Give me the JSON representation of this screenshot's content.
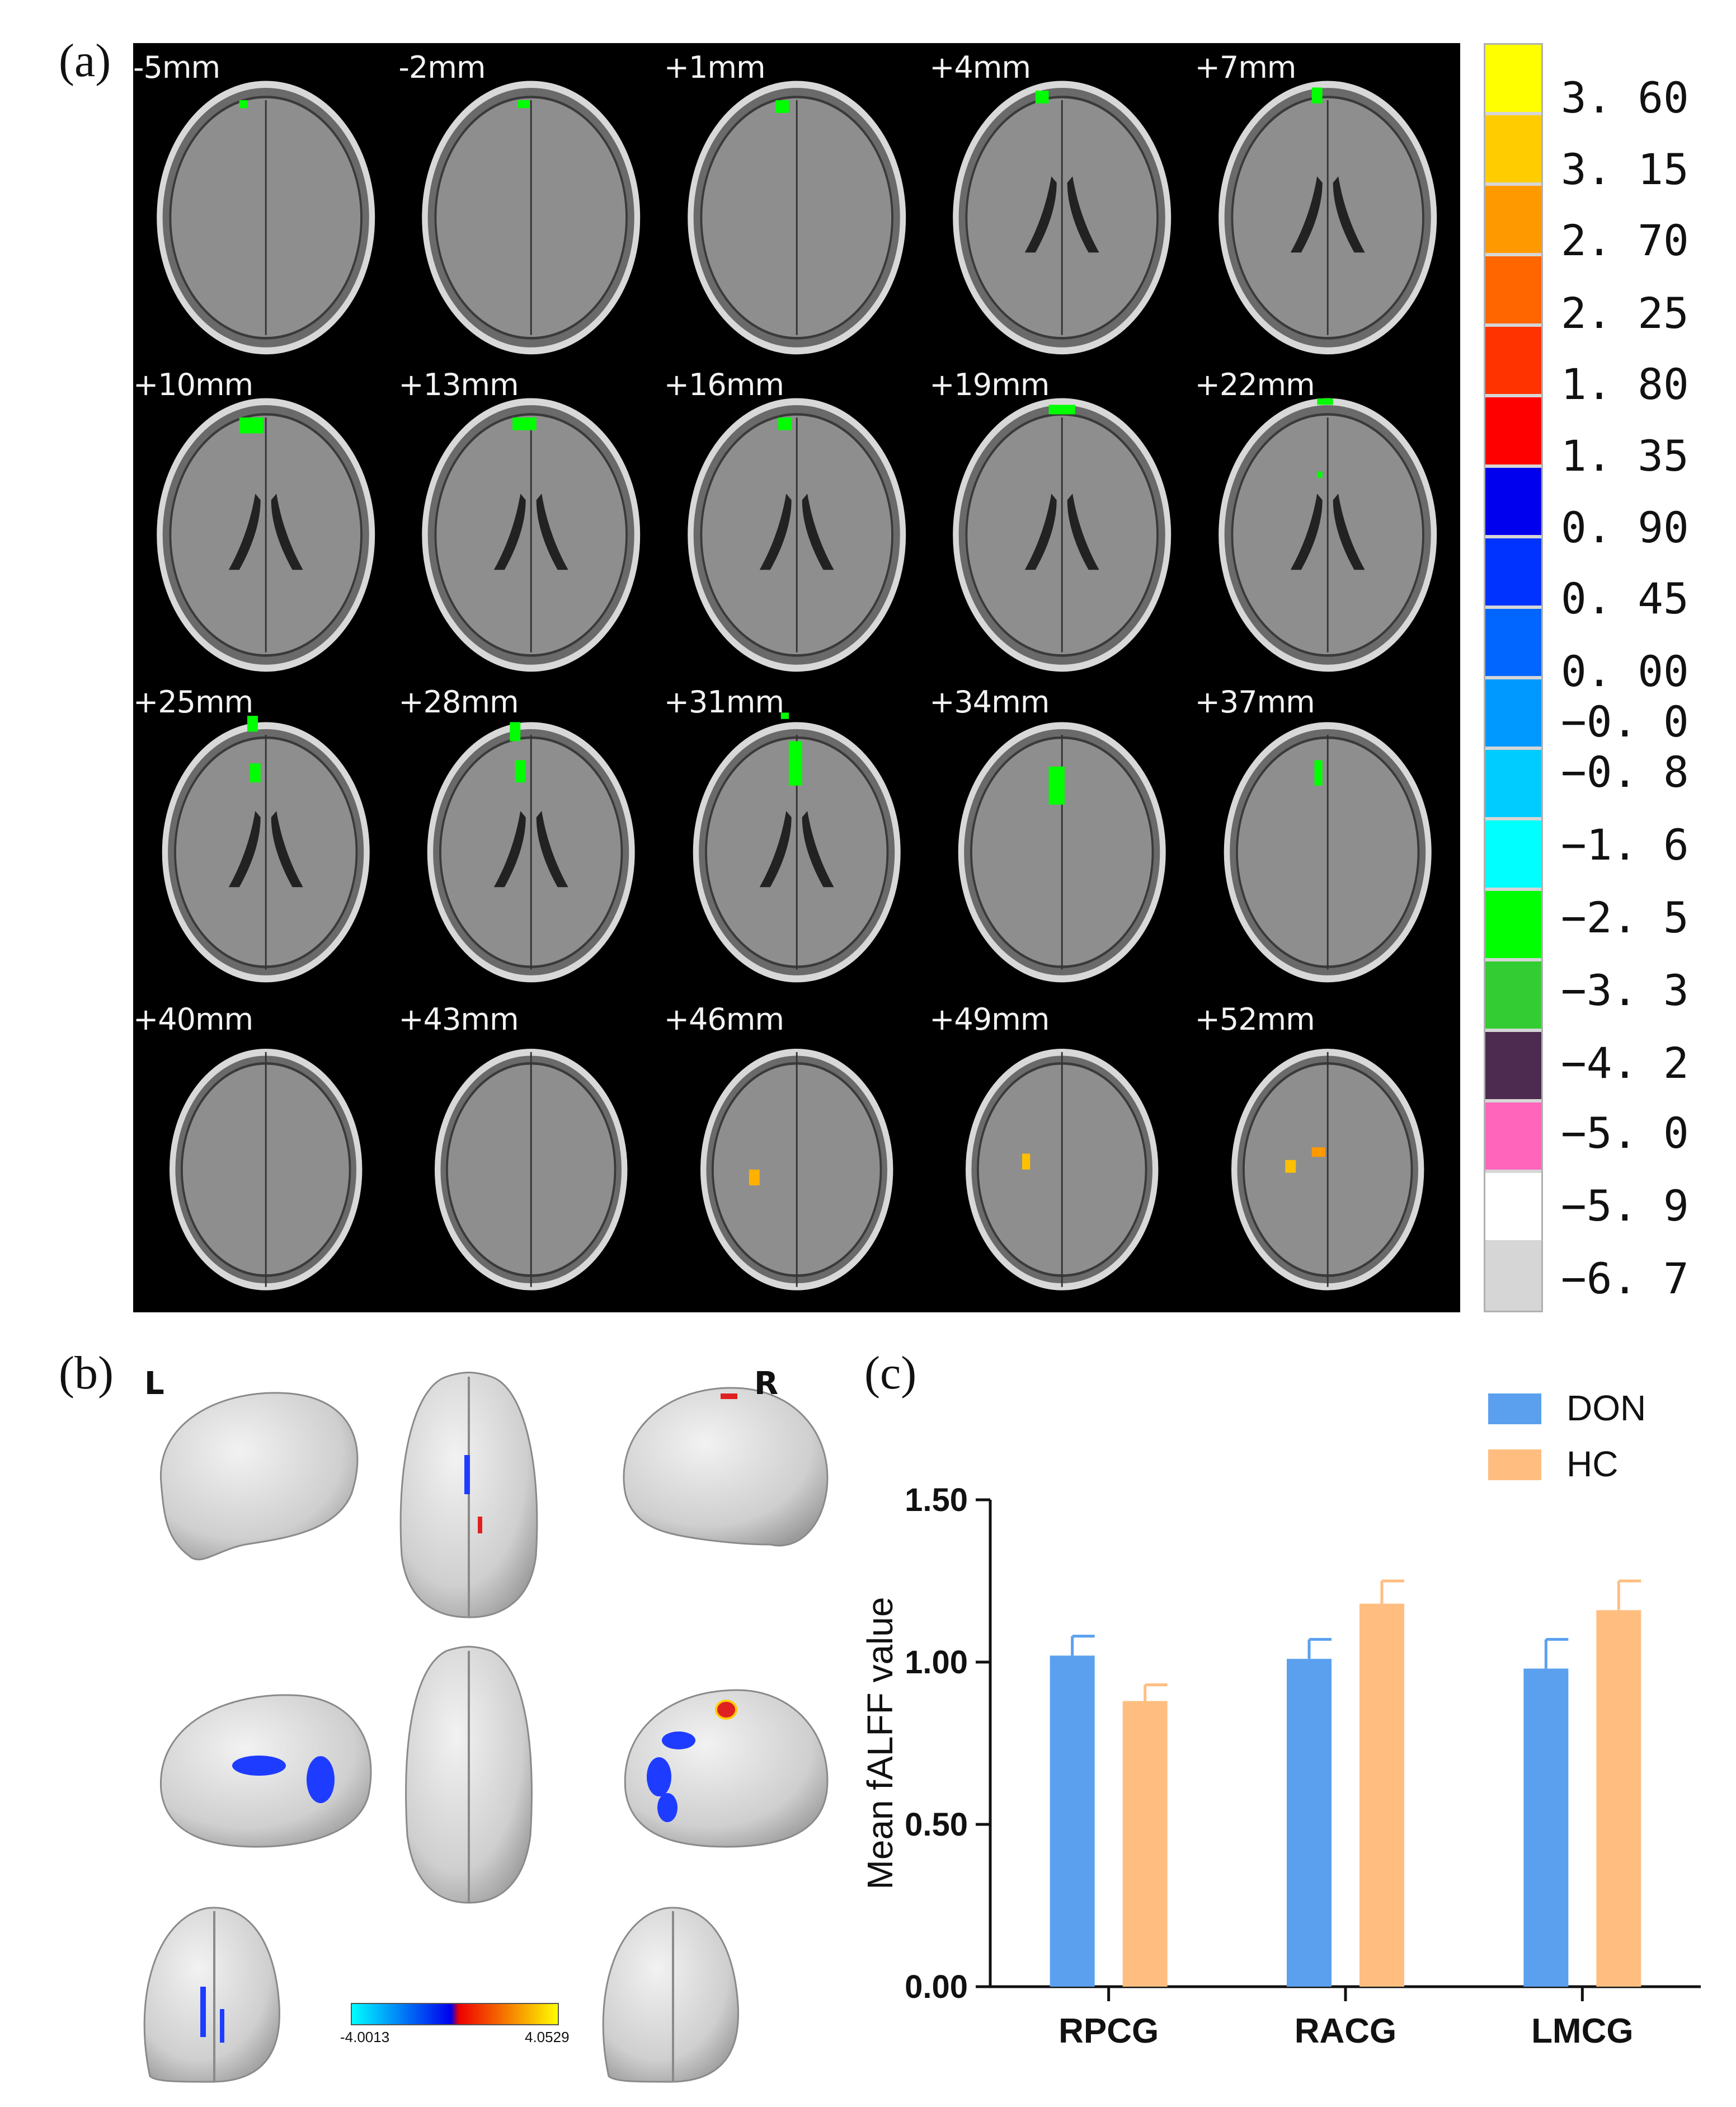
{
  "panel_a": {
    "letter": "(a)",
    "slices": [
      "-5mm",
      "-2mm",
      "+1mm",
      "+4mm",
      "+7mm",
      "+10mm",
      "+13mm",
      "+16mm",
      "+19mm",
      "+22mm",
      "+25mm",
      "+28mm",
      "+31mm",
      "+34mm",
      "+37mm",
      "+40mm",
      "+43mm",
      "+46mm",
      "+49mm",
      "+52mm"
    ],
    "colorbar": {
      "colors": [
        "#ffff00",
        "#ffcc00",
        "#ff9900",
        "#ff6600",
        "#ff3300",
        "#ff0000",
        "#0000ee",
        "#0033ff",
        "#0066ff",
        "#0099ff",
        "#00ccff",
        "#00ffff",
        "#00ff00",
        "#33cc33",
        "#4d2b50",
        "#ff66bb",
        "#ffffff",
        "#d6d6d6"
      ],
      "ticks": [
        "3. 60",
        "3. 15",
        "2. 70",
        "2. 25",
        "1. 80",
        "1. 35",
        "0. 90",
        "0. 45",
        "0. 00",
        "−0. 0",
        "−0. 8",
        "−1. 6",
        "−2. 5",
        "−3. 3",
        "−4. 2",
        "−5. 0",
        "−5. 9",
        "−6. 7"
      ]
    }
  },
  "panel_b": {
    "letter": "(b)",
    "left_label": "L",
    "right_label": "R",
    "scale_min": "-4.0013",
    "scale_max": "4.0529"
  },
  "panel_c": {
    "letter": "(c)"
  },
  "chart_data": {
    "type": "bar",
    "categories": [
      "RPCG",
      "RACG",
      "LMCG"
    ],
    "series": [
      {
        "name": "DON",
        "values": [
          1.02,
          1.01,
          0.98
        ],
        "errors": [
          0.06,
          0.06,
          0.09
        ],
        "color": "#5aa0ee"
      },
      {
        "name": "HC",
        "values": [
          0.88,
          1.18,
          1.16
        ],
        "errors": [
          0.05,
          0.07,
          0.09
        ],
        "color": "#ffbe80"
      }
    ],
    "ylabel": "Mean fALFF value",
    "ylim": [
      0,
      1.5
    ],
    "yticks": [
      "0.00",
      "0.50",
      "1.00",
      "1.50"
    ],
    "legend_position": "top-right"
  }
}
